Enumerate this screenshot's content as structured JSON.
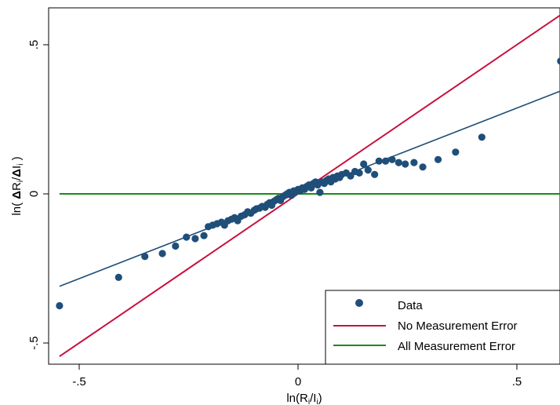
{
  "chart_data": {
    "type": "scatter",
    "xlabel": "ln(R_i/I_i)",
    "ylabel": "ln( ΔR_i/ΔI_i )",
    "xlim": [
      -0.56,
      0.6
    ],
    "ylim": [
      -0.56,
      0.6
    ],
    "x_ticks": [
      -0.5,
      0,
      0.5
    ],
    "x_tick_labels": [
      "-.5",
      "0",
      ".5"
    ],
    "y_ticks": [
      -0.5,
      0,
      0.5
    ],
    "y_tick_labels": [
      "-.5",
      "0",
      ".5"
    ],
    "grid": false,
    "legend_position": "bottom-right",
    "colors": {
      "data": "#1f4e79",
      "no_error": "#c8103e",
      "all_error": "#1a8a1a",
      "fit": "#1f4e79"
    },
    "series": [
      {
        "name": "Data",
        "kind": "scatter",
        "x": [
          -0.545,
          -0.41,
          -0.35,
          -0.31,
          -0.28,
          -0.255,
          -0.235,
          -0.215,
          -0.205,
          -0.195,
          -0.185,
          -0.175,
          -0.168,
          -0.16,
          -0.152,
          -0.145,
          -0.138,
          -0.13,
          -0.122,
          -0.115,
          -0.108,
          -0.1,
          -0.095,
          -0.088,
          -0.082,
          -0.075,
          -0.07,
          -0.065,
          -0.06,
          -0.055,
          -0.05,
          -0.045,
          -0.04,
          -0.035,
          -0.03,
          -0.025,
          -0.02,
          -0.015,
          -0.01,
          -0.005,
          0.0,
          0.005,
          0.01,
          0.015,
          0.02,
          0.025,
          0.03,
          0.035,
          0.04,
          0.045,
          0.05,
          0.055,
          0.06,
          0.065,
          0.07,
          0.075,
          0.08,
          0.085,
          0.09,
          0.095,
          0.1,
          0.11,
          0.12,
          0.13,
          0.14,
          0.15,
          0.16,
          0.175,
          0.185,
          0.2,
          0.215,
          0.23,
          0.245,
          0.265,
          0.285,
          0.32,
          0.36,
          0.42,
          0.6
        ],
        "y": [
          -0.375,
          -0.28,
          -0.21,
          -0.2,
          -0.175,
          -0.145,
          -0.15,
          -0.14,
          -0.11,
          -0.105,
          -0.1,
          -0.095,
          -0.105,
          -0.09,
          -0.085,
          -0.08,
          -0.09,
          -0.075,
          -0.07,
          -0.06,
          -0.065,
          -0.055,
          -0.05,
          -0.048,
          -0.042,
          -0.045,
          -0.035,
          -0.03,
          -0.038,
          -0.025,
          -0.02,
          -0.015,
          -0.022,
          -0.01,
          -0.005,
          0.0,
          0.005,
          -0.005,
          0.01,
          0.008,
          0.015,
          0.01,
          0.02,
          0.015,
          0.025,
          0.03,
          0.02,
          0.035,
          0.04,
          0.03,
          0.005,
          0.04,
          0.035,
          0.045,
          0.05,
          0.04,
          0.055,
          0.05,
          0.06,
          0.055,
          0.065,
          0.07,
          0.06,
          0.075,
          0.07,
          0.1,
          0.08,
          0.065,
          0.11,
          0.11,
          0.115,
          0.105,
          0.1,
          0.105,
          0.09,
          0.115,
          0.14,
          0.19,
          0.445
        ]
      },
      {
        "name": "No Measurement Error",
        "kind": "line",
        "x": [
          -0.545,
          0.6
        ],
        "y": [
          -0.545,
          0.6
        ]
      },
      {
        "name": "All Measurement Error",
        "kind": "line",
        "x": [
          -0.545,
          0.6
        ],
        "y": [
          0,
          0
        ]
      },
      {
        "kind": "line",
        "x": [
          -0.545,
          0.6
        ],
        "y": [
          -0.31,
          0.345
        ]
      }
    ]
  }
}
